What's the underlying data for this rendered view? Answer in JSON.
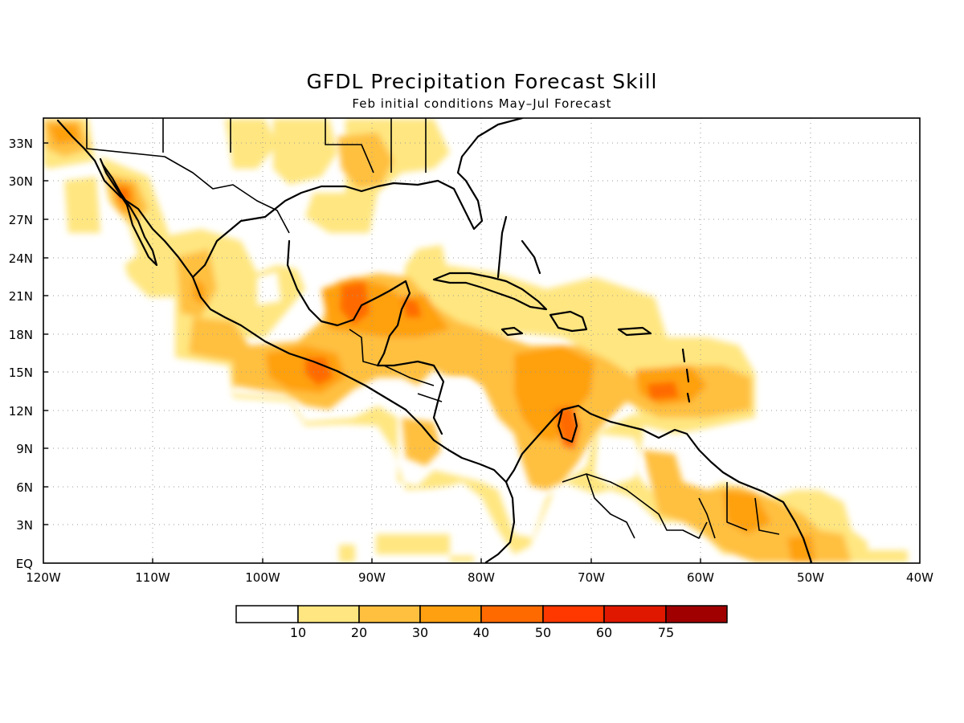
{
  "title": "GFDL Precipitation Forecast Skill",
  "subtitle": "Feb initial conditions   May–Jul Forecast",
  "map": {
    "lon_range": [
      -120,
      -40
    ],
    "lat_range": [
      0,
      35
    ],
    "lat_labels": [
      "33N",
      "30N",
      "27N",
      "24N",
      "21N",
      "18N",
      "15N",
      "12N",
      "9N",
      "6N",
      "3N",
      "EQ"
    ],
    "lon_labels": [
      "120W",
      "110W",
      "100W",
      "90W",
      "80W",
      "70W",
      "60W",
      "50W",
      "40W"
    ]
  },
  "legend": {
    "labels": [
      "10",
      "20",
      "30",
      "40",
      "50",
      "60",
      "75"
    ],
    "colors": [
      "#ffffff",
      "#ffe680",
      "#ffc040",
      "#ffa010",
      "#ff6a00",
      "#ff3800",
      "#e01800",
      "#a00000"
    ]
  }
}
